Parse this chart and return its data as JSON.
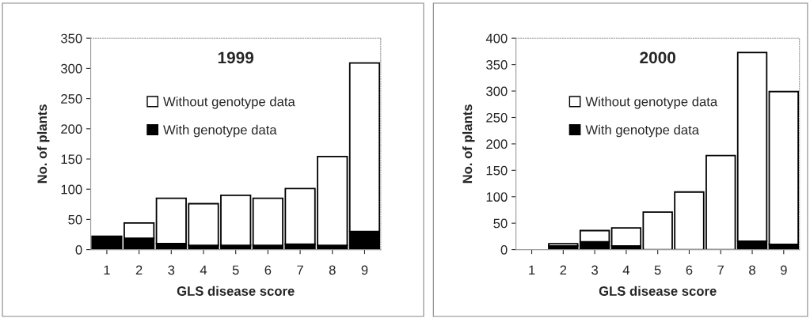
{
  "chart_data": [
    {
      "type": "bar",
      "title": "1999",
      "xlabel": "GLS disease score",
      "ylabel": "No. of plants",
      "stacked": true,
      "legend": "top",
      "grid": false,
      "categories": [
        "1",
        "2",
        "3",
        "4",
        "5",
        "6",
        "7",
        "8",
        "9"
      ],
      "ylim": [
        0,
        350
      ],
      "yticks": [
        0,
        50,
        100,
        150,
        200,
        250,
        300,
        350
      ],
      "series": [
        {
          "name": "With genotype data",
          "color": "#000000",
          "values": [
            22,
            19,
            10,
            7,
            7,
            7,
            9,
            7,
            30
          ]
        },
        {
          "name": "Without genotype data",
          "color": "#ffffff",
          "values": [
            0,
            25,
            75,
            69,
            83,
            78,
            92,
            147,
            279
          ]
        }
      ]
    },
    {
      "type": "bar",
      "title": "2000",
      "xlabel": "GLS disease score",
      "ylabel": "No. of plants",
      "stacked": true,
      "legend": "top",
      "grid": false,
      "categories": [
        "1",
        "2",
        "3",
        "4",
        "5",
        "6",
        "7",
        "8",
        "9"
      ],
      "ylim": [
        0,
        400
      ],
      "yticks": [
        0,
        50,
        100,
        150,
        200,
        250,
        300,
        350,
        400
      ],
      "series": [
        {
          "name": "With genotype data",
          "color": "#000000",
          "values": [
            0,
            7,
            15,
            7,
            0,
            0,
            0,
            16,
            10
          ]
        },
        {
          "name": "Without genotype data",
          "color": "#ffffff",
          "values": [
            0,
            4,
            21,
            34,
            71,
            109,
            178,
            357,
            289
          ]
        }
      ]
    }
  ]
}
